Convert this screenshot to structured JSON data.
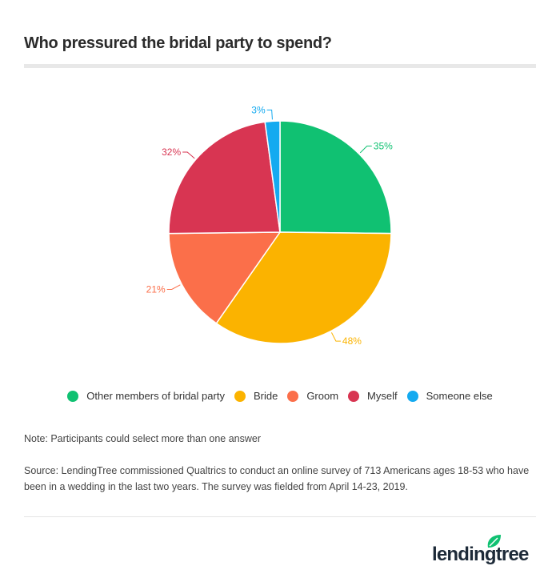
{
  "header": {
    "title": "Who pressured the bridal party to spend?"
  },
  "chart_data": {
    "type": "pie",
    "title": "Who pressured the bridal party to spend?",
    "categories": [
      "Other members of bridal party",
      "Bride",
      "Groom",
      "Myself",
      "Someone else"
    ],
    "values": [
      35,
      48,
      21,
      32,
      3
    ],
    "labels": [
      "35%",
      "48%",
      "21%",
      "32%",
      "3%"
    ],
    "colors": [
      "#10c172",
      "#fbb300",
      "#fb6f4a",
      "#d83552",
      "#14aaf0"
    ],
    "legend_position": "bottom"
  },
  "legend": {
    "items": [
      {
        "label": "Other members of bridal party",
        "color": "#10c172"
      },
      {
        "label": "Bride",
        "color": "#fbb300"
      },
      {
        "label": "Groom",
        "color": "#fb6f4a"
      },
      {
        "label": "Myself",
        "color": "#d83552"
      },
      {
        "label": "Someone else",
        "color": "#14aaf0"
      }
    ]
  },
  "notes": {
    "note": "Note: Participants could select more than one answer",
    "source": "Source: LendingTree commissioned Qualtrics to conduct an online survey of 713 Americans ages 18-53 who have been in a wedding in the last two years. The survey was fielded from April 14-23, 2019."
  },
  "brand": {
    "logo_text": "lendingtree",
    "logo_color": "#10c172"
  }
}
